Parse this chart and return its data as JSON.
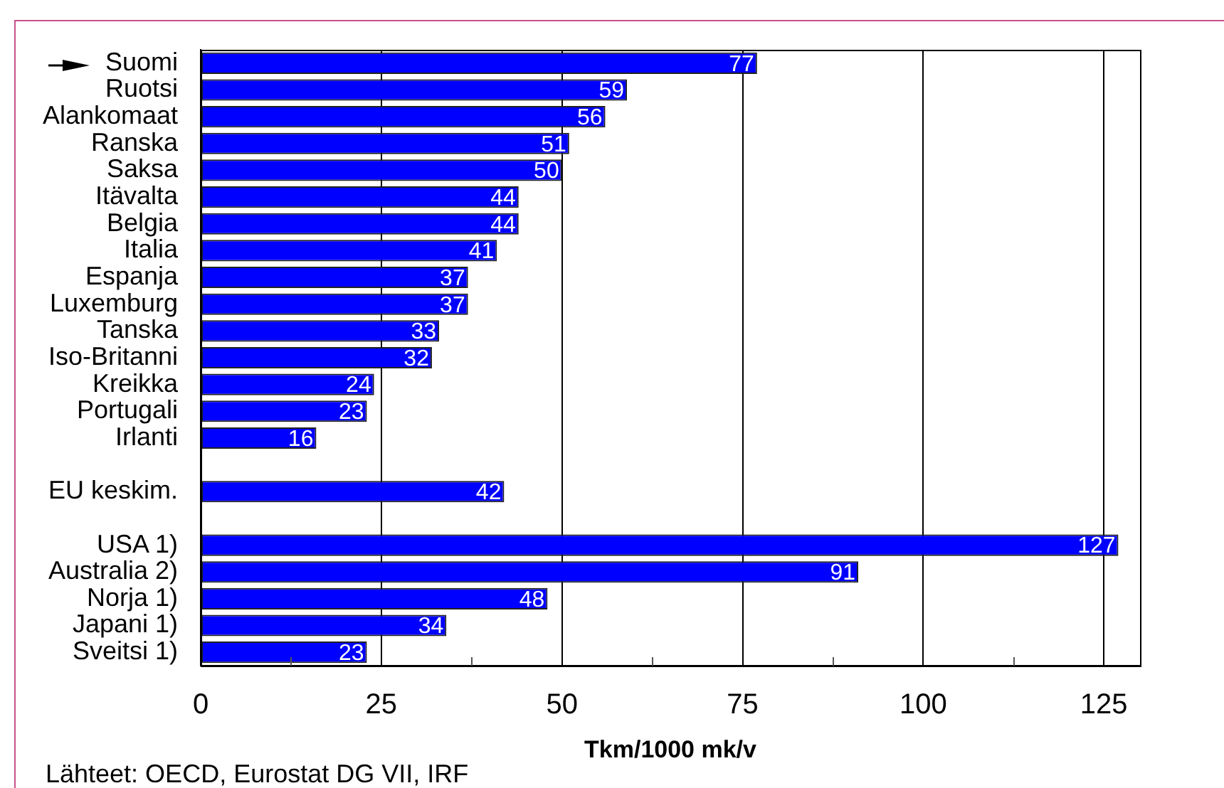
{
  "chart_data": {
    "type": "bar",
    "orientation": "horizontal",
    "categories": [
      "Suomi",
      "Ruotsi",
      "Alankomaat",
      "Ranska",
      "Saksa",
      "Itävalta",
      "Belgia",
      "Italia",
      "Espanja",
      "Luxemburg",
      "Tanska",
      "Iso-Britanni",
      "Kreikka",
      "Portugali",
      "Irlanti",
      null,
      "EU keskim.",
      null,
      "USA 1)",
      "Australia 2)",
      "Norja 1)",
      "Japani 1)",
      "Sveitsi 1)"
    ],
    "values": [
      77,
      59,
      56,
      51,
      50,
      44,
      44,
      41,
      37,
      37,
      33,
      32,
      24,
      23,
      16,
      null,
      42,
      null,
      127,
      91,
      48,
      34,
      23
    ],
    "color": "#0000ff",
    "xlabel": "Tkm/1000 mk/v",
    "annotations": [
      "Lähteet: OECD, Eurostat DG VII, IRF"
    ],
    "xlim": [
      0,
      130
    ],
    "xticks": [
      0,
      {
        "value": 12.5,
        "label": null
      },
      25,
      {
        "value": 37.5,
        "label": null
      },
      50,
      {
        "value": 62.5,
        "label": null
      },
      75,
      {
        "value": 87.5,
        "label": null
      },
      100,
      {
        "value": 112.5,
        "label": null
      },
      125
    ],
    "grid": "x",
    "data_labels": true
  }
}
